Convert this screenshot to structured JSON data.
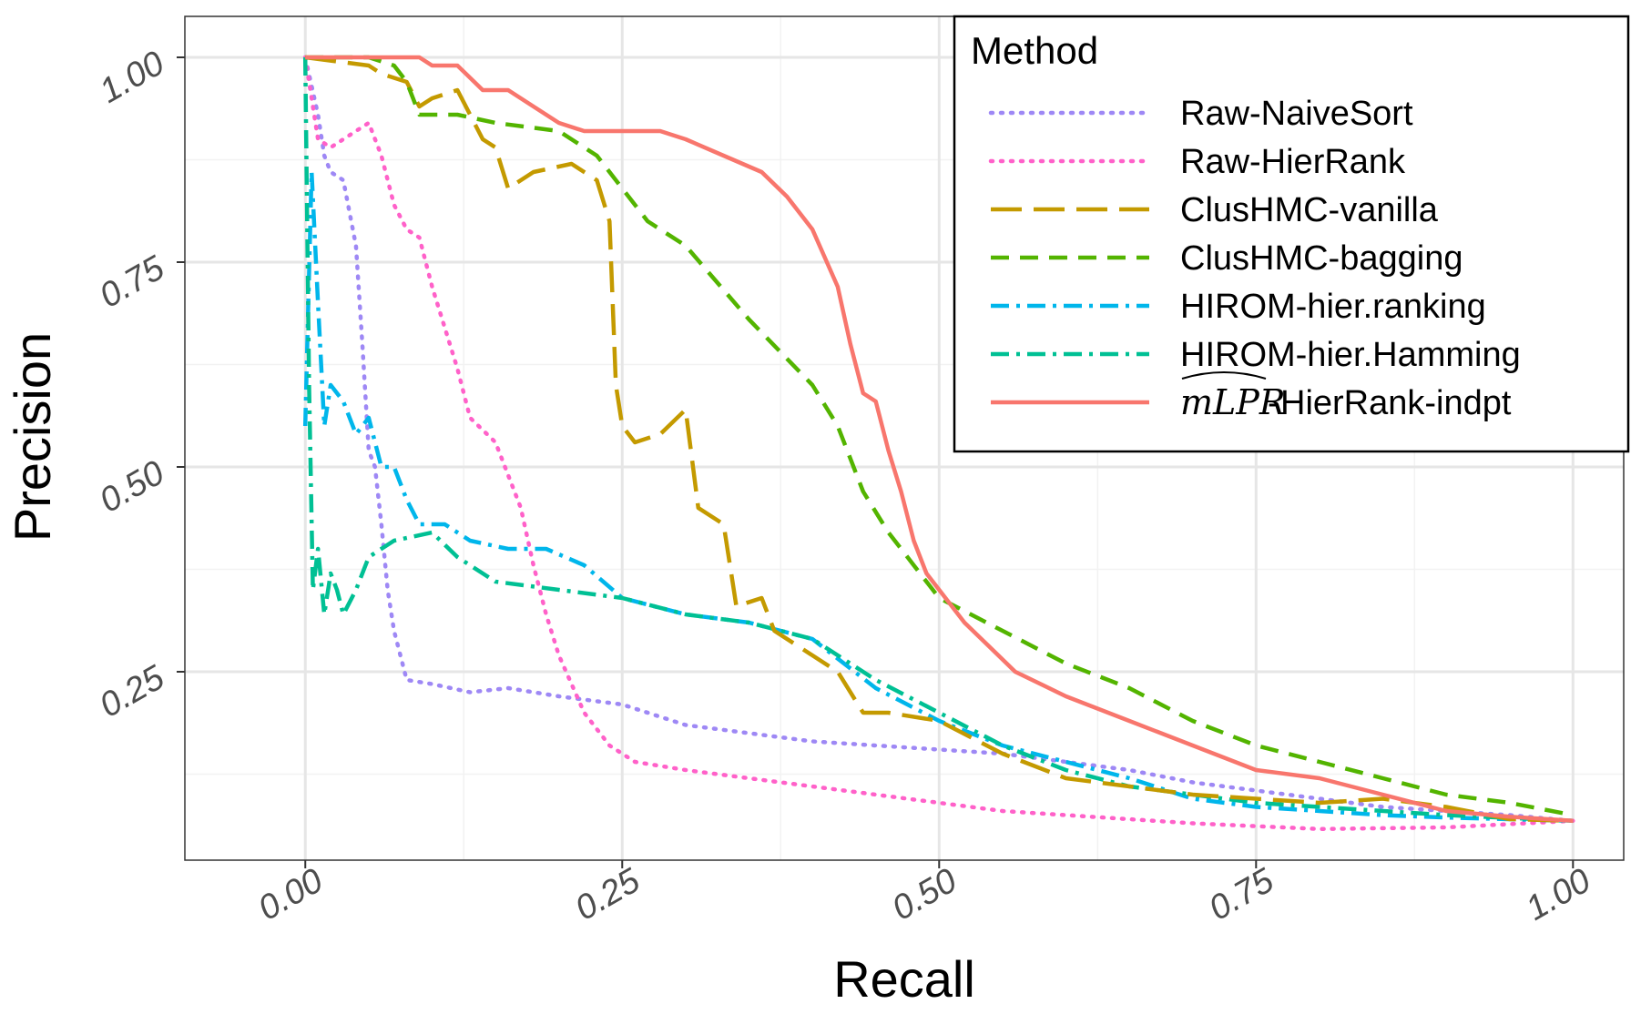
{
  "chart_data": {
    "type": "line",
    "title": "",
    "xlabel": "Recall",
    "ylabel": "Precision",
    "xlim": [
      -0.095,
      1.04
    ],
    "ylim": [
      0.02,
      1.05
    ],
    "x_ticks": [
      "0.00",
      "0.25",
      "0.50",
      "0.75",
      "1.00"
    ],
    "y_ticks": [
      "0.25",
      "0.50",
      "0.75",
      "1.00"
    ],
    "grid": true,
    "legend": {
      "title": "Method",
      "placement": "top-right"
    },
    "series": [
      {
        "name": "Raw-NaiveSort",
        "color": "#9e88f5",
        "dash": "dotted",
        "points": [
          [
            0.0,
            1.0
          ],
          [
            0.01,
            0.93
          ],
          [
            0.015,
            0.88
          ],
          [
            0.02,
            0.86
          ],
          [
            0.03,
            0.85
          ],
          [
            0.04,
            0.77
          ],
          [
            0.045,
            0.65
          ],
          [
            0.05,
            0.52
          ],
          [
            0.055,
            0.5
          ],
          [
            0.06,
            0.43
          ],
          [
            0.065,
            0.35
          ],
          [
            0.07,
            0.3
          ],
          [
            0.08,
            0.24
          ],
          [
            0.1,
            0.235
          ],
          [
            0.13,
            0.225
          ],
          [
            0.16,
            0.23
          ],
          [
            0.2,
            0.22
          ],
          [
            0.25,
            0.21
          ],
          [
            0.3,
            0.185
          ],
          [
            0.35,
            0.175
          ],
          [
            0.4,
            0.165
          ],
          [
            0.45,
            0.16
          ],
          [
            0.5,
            0.155
          ],
          [
            0.55,
            0.15
          ],
          [
            0.6,
            0.14
          ],
          [
            0.65,
            0.13
          ],
          [
            0.7,
            0.115
          ],
          [
            0.75,
            0.105
          ],
          [
            0.8,
            0.095
          ],
          [
            0.85,
            0.085
          ],
          [
            0.9,
            0.08
          ],
          [
            0.95,
            0.075
          ],
          [
            1.0,
            0.068
          ]
        ]
      },
      {
        "name": "Raw-HierRank",
        "color": "#ff61c9",
        "dash": "dotted",
        "points": [
          [
            0.0,
            1.0
          ],
          [
            0.005,
            0.95
          ],
          [
            0.01,
            0.9
          ],
          [
            0.02,
            0.89
          ],
          [
            0.03,
            0.9
          ],
          [
            0.04,
            0.91
          ],
          [
            0.05,
            0.92
          ],
          [
            0.06,
            0.88
          ],
          [
            0.07,
            0.82
          ],
          [
            0.08,
            0.79
          ],
          [
            0.09,
            0.78
          ],
          [
            0.1,
            0.72
          ],
          [
            0.12,
            0.62
          ],
          [
            0.13,
            0.56
          ],
          [
            0.15,
            0.53
          ],
          [
            0.16,
            0.49
          ],
          [
            0.17,
            0.45
          ],
          [
            0.18,
            0.38
          ],
          [
            0.19,
            0.32
          ],
          [
            0.2,
            0.27
          ],
          [
            0.22,
            0.2
          ],
          [
            0.24,
            0.16
          ],
          [
            0.26,
            0.14
          ],
          [
            0.3,
            0.13
          ],
          [
            0.35,
            0.12
          ],
          [
            0.4,
            0.11
          ],
          [
            0.45,
            0.1
          ],
          [
            0.5,
            0.09
          ],
          [
            0.55,
            0.08
          ],
          [
            0.6,
            0.075
          ],
          [
            0.7,
            0.065
          ],
          [
            0.8,
            0.058
          ],
          [
            0.9,
            0.06
          ],
          [
            1.0,
            0.068
          ]
        ]
      },
      {
        "name": "ClusHMC-vanilla",
        "color": "#c49a00",
        "dash": "long",
        "points": [
          [
            0.0,
            1.0
          ],
          [
            0.05,
            0.99
          ],
          [
            0.06,
            0.98
          ],
          [
            0.08,
            0.97
          ],
          [
            0.09,
            0.94
          ],
          [
            0.1,
            0.95
          ],
          [
            0.12,
            0.96
          ],
          [
            0.13,
            0.93
          ],
          [
            0.14,
            0.9
          ],
          [
            0.15,
            0.89
          ],
          [
            0.16,
            0.84
          ],
          [
            0.18,
            0.86
          ],
          [
            0.21,
            0.87
          ],
          [
            0.22,
            0.86
          ],
          [
            0.23,
            0.85
          ],
          [
            0.24,
            0.8
          ],
          [
            0.245,
            0.6
          ],
          [
            0.25,
            0.55
          ],
          [
            0.26,
            0.53
          ],
          [
            0.28,
            0.54
          ],
          [
            0.3,
            0.57
          ],
          [
            0.31,
            0.45
          ],
          [
            0.32,
            0.44
          ],
          [
            0.33,
            0.43
          ],
          [
            0.34,
            0.33
          ],
          [
            0.36,
            0.34
          ],
          [
            0.37,
            0.3
          ],
          [
            0.4,
            0.27
          ],
          [
            0.42,
            0.25
          ],
          [
            0.44,
            0.2
          ],
          [
            0.46,
            0.2
          ],
          [
            0.5,
            0.19
          ],
          [
            0.55,
            0.15
          ],
          [
            0.6,
            0.12
          ],
          [
            0.65,
            0.11
          ],
          [
            0.7,
            0.1
          ],
          [
            0.75,
            0.095
          ],
          [
            0.8,
            0.09
          ],
          [
            0.85,
            0.095
          ],
          [
            0.9,
            0.085
          ],
          [
            0.95,
            0.07
          ],
          [
            1.0,
            0.068
          ]
        ]
      },
      {
        "name": "ClusHMC-bagging",
        "color": "#53b400",
        "dash": "dashed",
        "points": [
          [
            0.0,
            1.0
          ],
          [
            0.05,
            1.0
          ],
          [
            0.07,
            0.99
          ],
          [
            0.08,
            0.97
          ],
          [
            0.09,
            0.93
          ],
          [
            0.12,
            0.93
          ],
          [
            0.15,
            0.92
          ],
          [
            0.2,
            0.91
          ],
          [
            0.23,
            0.88
          ],
          [
            0.25,
            0.84
          ],
          [
            0.27,
            0.8
          ],
          [
            0.3,
            0.77
          ],
          [
            0.35,
            0.68
          ],
          [
            0.4,
            0.6
          ],
          [
            0.42,
            0.55
          ],
          [
            0.44,
            0.47
          ],
          [
            0.46,
            0.42
          ],
          [
            0.48,
            0.38
          ],
          [
            0.5,
            0.34
          ],
          [
            0.55,
            0.3
          ],
          [
            0.6,
            0.26
          ],
          [
            0.65,
            0.23
          ],
          [
            0.7,
            0.19
          ],
          [
            0.75,
            0.16
          ],
          [
            0.8,
            0.14
          ],
          [
            0.85,
            0.12
          ],
          [
            0.9,
            0.1
          ],
          [
            0.95,
            0.09
          ],
          [
            1.0,
            0.075
          ]
        ]
      },
      {
        "name": "HIROM-hier.ranking",
        "color": "#00b6eb",
        "dash": "dashdot",
        "points": [
          [
            0.0,
            0.55
          ],
          [
            0.005,
            0.86
          ],
          [
            0.01,
            0.7
          ],
          [
            0.015,
            0.55
          ],
          [
            0.02,
            0.6
          ],
          [
            0.03,
            0.58
          ],
          [
            0.04,
            0.54
          ],
          [
            0.05,
            0.56
          ],
          [
            0.06,
            0.5
          ],
          [
            0.07,
            0.5
          ],
          [
            0.08,
            0.46
          ],
          [
            0.09,
            0.43
          ],
          [
            0.11,
            0.43
          ],
          [
            0.13,
            0.41
          ],
          [
            0.16,
            0.4
          ],
          [
            0.19,
            0.4
          ],
          [
            0.22,
            0.38
          ],
          [
            0.25,
            0.34
          ],
          [
            0.3,
            0.32
          ],
          [
            0.35,
            0.31
          ],
          [
            0.4,
            0.29
          ],
          [
            0.45,
            0.23
          ],
          [
            0.5,
            0.19
          ],
          [
            0.55,
            0.16
          ],
          [
            0.6,
            0.14
          ],
          [
            0.65,
            0.12
          ],
          [
            0.7,
            0.095
          ],
          [
            0.75,
            0.085
          ],
          [
            0.8,
            0.08
          ],
          [
            0.85,
            0.075
          ],
          [
            0.9,
            0.072
          ],
          [
            1.0,
            0.068
          ]
        ]
      },
      {
        "name": "HIROM-hier.Hamming",
        "color": "#00c094",
        "dash": "dashdot",
        "points": [
          [
            0.0,
            1.0
          ],
          [
            0.003,
            0.6
          ],
          [
            0.006,
            0.35
          ],
          [
            0.01,
            0.4
          ],
          [
            0.015,
            0.32
          ],
          [
            0.02,
            0.37
          ],
          [
            0.025,
            0.35
          ],
          [
            0.03,
            0.32
          ],
          [
            0.04,
            0.35
          ],
          [
            0.05,
            0.39
          ],
          [
            0.07,
            0.41
          ],
          [
            0.1,
            0.42
          ],
          [
            0.12,
            0.39
          ],
          [
            0.15,
            0.36
          ],
          [
            0.2,
            0.35
          ],
          [
            0.25,
            0.34
          ],
          [
            0.3,
            0.32
          ],
          [
            0.35,
            0.31
          ],
          [
            0.4,
            0.29
          ],
          [
            0.45,
            0.24
          ],
          [
            0.5,
            0.2
          ],
          [
            0.55,
            0.16
          ],
          [
            0.6,
            0.13
          ],
          [
            0.65,
            0.11
          ],
          [
            0.7,
            0.1
          ],
          [
            0.75,
            0.09
          ],
          [
            0.8,
            0.085
          ],
          [
            0.9,
            0.075
          ],
          [
            1.0,
            0.068
          ]
        ]
      },
      {
        "name": "HierRank-indpt",
        "name_prefix": "mLPR",
        "color": "#f8766d",
        "dash": "solid",
        "points": [
          [
            0.0,
            1.0
          ],
          [
            0.04,
            1.0
          ],
          [
            0.09,
            1.0
          ],
          [
            0.1,
            0.99
          ],
          [
            0.12,
            0.99
          ],
          [
            0.14,
            0.96
          ],
          [
            0.16,
            0.96
          ],
          [
            0.18,
            0.94
          ],
          [
            0.2,
            0.92
          ],
          [
            0.22,
            0.91
          ],
          [
            0.25,
            0.91
          ],
          [
            0.28,
            0.91
          ],
          [
            0.3,
            0.9
          ],
          [
            0.33,
            0.88
          ],
          [
            0.36,
            0.86
          ],
          [
            0.38,
            0.83
          ],
          [
            0.4,
            0.79
          ],
          [
            0.42,
            0.72
          ],
          [
            0.43,
            0.65
          ],
          [
            0.44,
            0.59
          ],
          [
            0.45,
            0.58
          ],
          [
            0.46,
            0.52
          ],
          [
            0.47,
            0.47
          ],
          [
            0.48,
            0.41
          ],
          [
            0.49,
            0.37
          ],
          [
            0.5,
            0.35
          ],
          [
            0.52,
            0.31
          ],
          [
            0.54,
            0.28
          ],
          [
            0.56,
            0.25
          ],
          [
            0.6,
            0.22
          ],
          [
            0.65,
            0.19
          ],
          [
            0.7,
            0.16
          ],
          [
            0.75,
            0.13
          ],
          [
            0.8,
            0.12
          ],
          [
            0.85,
            0.1
          ],
          [
            0.9,
            0.08
          ],
          [
            0.95,
            0.073
          ],
          [
            1.0,
            0.068
          ]
        ]
      }
    ]
  }
}
